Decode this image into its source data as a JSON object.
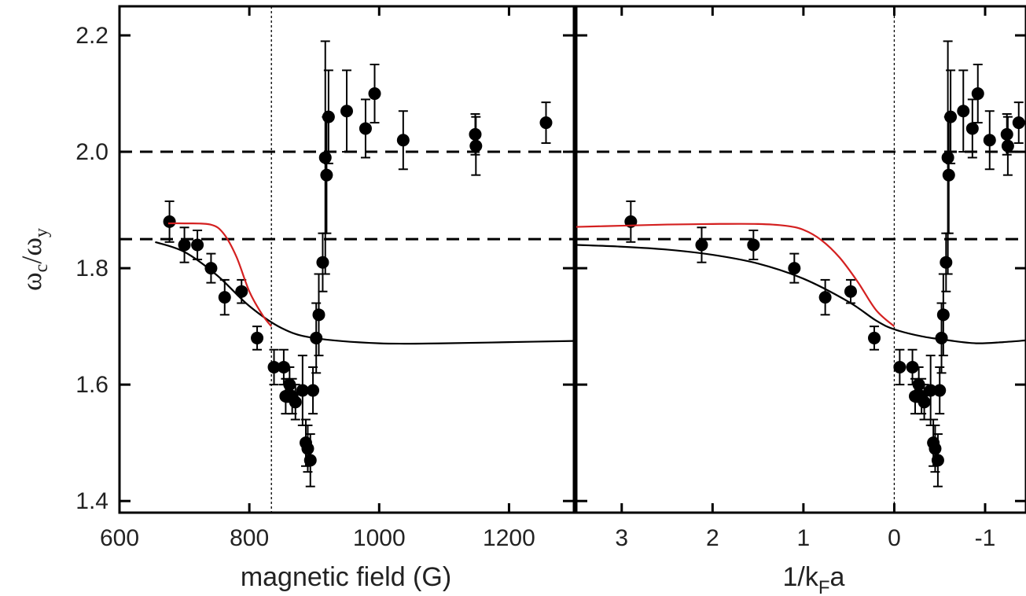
{
  "chart_data": [
    {
      "type": "scatter",
      "panel": "left",
      "title": "",
      "xlabel": "magnetic field (G)",
      "ylabel": "ω_c/ω_y",
      "xlim": [
        600,
        1300
      ],
      "ylim": [
        1.38,
        2.25
      ],
      "x_ticks": [
        600,
        800,
        1000,
        1200
      ],
      "x_tick_labels": [
        "600",
        "800",
        "1000",
        "1200"
      ],
      "y_ticks": [
        1.4,
        1.6,
        1.8,
        2.0,
        2.2
      ],
      "y_tick_labels": [
        "1.4",
        "1.6",
        "1.8",
        "2.0",
        "2.2"
      ],
      "grid": false,
      "legend": "none",
      "reference_lines": {
        "horizontal_dashed": [
          2.0,
          1.85
        ],
        "vertical_dotted": [
          834
        ]
      },
      "series": [
        {
          "kind": "points_with_errorbars",
          "color": "#000000",
          "points": [
            {
              "x": 677,
              "y": 1.88,
              "err": 0.035
            },
            {
              "x": 700,
              "y": 1.84,
              "err": 0.03
            },
            {
              "x": 720,
              "y": 1.84,
              "err": 0.025
            },
            {
              "x": 741,
              "y": 1.8,
              "err": 0.025
            },
            {
              "x": 762,
              "y": 1.75,
              "err": 0.03
            },
            {
              "x": 788,
              "y": 1.76,
              "err": 0.02
            },
            {
              "x": 812,
              "y": 1.68,
              "err": 0.02
            },
            {
              "x": 838,
              "y": 1.63,
              "err": 0.03
            },
            {
              "x": 853,
              "y": 1.63,
              "err": 0.03
            },
            {
              "x": 856,
              "y": 1.58,
              "err": 0.03
            },
            {
              "x": 862,
              "y": 1.6,
              "err": 0.03
            },
            {
              "x": 866,
              "y": 1.58,
              "err": 0.03
            },
            {
              "x": 871,
              "y": 1.57,
              "err": 0.03
            },
            {
              "x": 882,
              "y": 1.59,
              "err": 0.06
            },
            {
              "x": 887,
              "y": 1.5,
              "err": 0.04
            },
            {
              "x": 890,
              "y": 1.49,
              "err": 0.04
            },
            {
              "x": 894,
              "y": 1.47,
              "err": 0.045
            },
            {
              "x": 898,
              "y": 1.59,
              "err": 0.04
            },
            {
              "x": 903,
              "y": 1.68,
              "err": 0.06
            },
            {
              "x": 907,
              "y": 1.72,
              "err": 0.07
            },
            {
              "x": 913,
              "y": 1.81,
              "err": 0.05
            },
            {
              "x": 917,
              "y": 1.99,
              "err": 0.2
            },
            {
              "x": 919,
              "y": 1.96,
              "err": 0.1
            },
            {
              "x": 922,
              "y": 2.06,
              "err": 0.08
            },
            {
              "x": 950,
              "y": 2.07,
              "err": 0.07
            },
            {
              "x": 979,
              "y": 2.04,
              "err": 0.05
            },
            {
              "x": 993,
              "y": 2.1,
              "err": 0.05
            },
            {
              "x": 1037,
              "y": 2.02,
              "err": 0.05
            },
            {
              "x": 1148,
              "y": 2.03,
              "err": 0.035
            },
            {
              "x": 1149,
              "y": 2.01,
              "err": 0.05
            },
            {
              "x": 1257,
              "y": 2.05,
              "err": 0.035
            }
          ]
        },
        {
          "kind": "curve",
          "color": "#000000",
          "x": [
            655,
            700,
            750,
            800,
            850,
            900,
            1000,
            1100,
            1200,
            1300
          ],
          "y": [
            1.845,
            1.828,
            1.788,
            1.735,
            1.697,
            1.68,
            1.671,
            1.671,
            1.673,
            1.675
          ]
        },
        {
          "kind": "curve",
          "color": "#d42020",
          "x": [
            675,
            700,
            740,
            760,
            780,
            800,
            820,
            834
          ],
          "y": [
            1.877,
            1.877,
            1.875,
            1.86,
            1.82,
            1.76,
            1.72,
            1.7
          ]
        }
      ]
    },
    {
      "type": "scatter",
      "panel": "right",
      "title": "",
      "xlabel": "1/k_Fa",
      "ylabel": "",
      "xlim": [
        3.5,
        -1.45
      ],
      "ylim": [
        1.38,
        2.25
      ],
      "x_ticks": [
        3,
        2,
        1,
        0,
        -1
      ],
      "x_tick_labels": [
        "3",
        "2",
        "1",
        "0",
        "-1"
      ],
      "grid": false,
      "legend": "none",
      "reference_lines": {
        "horizontal_dashed": [
          2.0,
          1.85
        ],
        "vertical_dotted": [
          0
        ]
      },
      "series": [
        {
          "kind": "points_with_errorbars",
          "color": "#000000",
          "points": [
            {
              "x": 2.9,
              "y": 1.88,
              "err": 0.035
            },
            {
              "x": 2.12,
              "y": 1.84,
              "err": 0.03
            },
            {
              "x": 1.55,
              "y": 1.84,
              "err": 0.025
            },
            {
              "x": 1.1,
              "y": 1.8,
              "err": 0.025
            },
            {
              "x": 0.76,
              "y": 1.75,
              "err": 0.03
            },
            {
              "x": 0.48,
              "y": 1.76,
              "err": 0.02
            },
            {
              "x": 0.22,
              "y": 1.68,
              "err": 0.02
            },
            {
              "x": -0.06,
              "y": 1.63,
              "err": 0.03
            },
            {
              "x": -0.2,
              "y": 1.63,
              "err": 0.03
            },
            {
              "x": -0.23,
              "y": 1.58,
              "err": 0.03
            },
            {
              "x": -0.27,
              "y": 1.6,
              "err": 0.03
            },
            {
              "x": -0.3,
              "y": 1.58,
              "err": 0.03
            },
            {
              "x": -0.33,
              "y": 1.57,
              "err": 0.03
            },
            {
              "x": -0.4,
              "y": 1.59,
              "err": 0.06
            },
            {
              "x": -0.43,
              "y": 1.5,
              "err": 0.04
            },
            {
              "x": -0.45,
              "y": 1.49,
              "err": 0.04
            },
            {
              "x": -0.48,
              "y": 1.47,
              "err": 0.045
            },
            {
              "x": -0.5,
              "y": 1.59,
              "err": 0.04
            },
            {
              "x": -0.52,
              "y": 1.68,
              "err": 0.06
            },
            {
              "x": -0.54,
              "y": 1.72,
              "err": 0.07
            },
            {
              "x": -0.57,
              "y": 1.81,
              "err": 0.05
            },
            {
              "x": -0.59,
              "y": 1.99,
              "err": 0.2
            },
            {
              "x": -0.6,
              "y": 1.96,
              "err": 0.1
            },
            {
              "x": -0.62,
              "y": 2.06,
              "err": 0.08
            },
            {
              "x": -0.76,
              "y": 2.07,
              "err": 0.07
            },
            {
              "x": -0.86,
              "y": 2.04,
              "err": 0.05
            },
            {
              "x": -0.92,
              "y": 2.1,
              "err": 0.05
            },
            {
              "x": -1.05,
              "y": 2.02,
              "err": 0.05
            },
            {
              "x": -1.24,
              "y": 2.03,
              "err": 0.035
            },
            {
              "x": -1.25,
              "y": 2.01,
              "err": 0.05
            },
            {
              "x": -1.37,
              "y": 2.05,
              "err": 0.035
            }
          ]
        },
        {
          "kind": "curve",
          "color": "#000000",
          "x": [
            3.5,
            3.0,
            2.5,
            2.0,
            1.5,
            1.0,
            0.5,
            0.2,
            0.0,
            -0.3,
            -0.6,
            -0.9,
            -1.2,
            -1.45
          ],
          "y": [
            1.84,
            1.837,
            1.832,
            1.823,
            1.808,
            1.782,
            1.742,
            1.71,
            1.695,
            1.683,
            1.676,
            1.671,
            1.673,
            1.676
          ]
        },
        {
          "kind": "curve",
          "color": "#d42020",
          "x": [
            3.5,
            3.0,
            2.5,
            2.0,
            1.5,
            1.2,
            1.0,
            0.8,
            0.6,
            0.4,
            0.2,
            0.0
          ],
          "y": [
            1.871,
            1.873,
            1.875,
            1.876,
            1.876,
            1.873,
            1.866,
            1.848,
            1.818,
            1.776,
            1.728,
            1.7
          ]
        }
      ]
    }
  ]
}
